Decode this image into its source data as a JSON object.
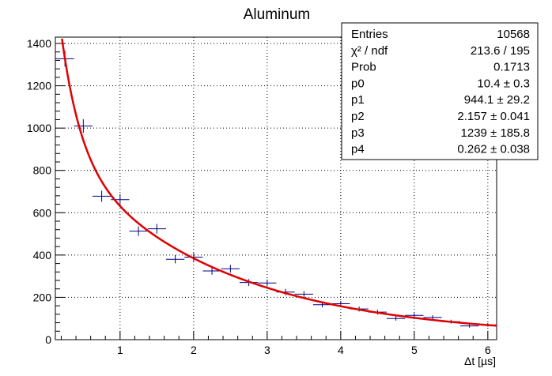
{
  "chart_data": {
    "type": "scatter",
    "title": "Aluminum",
    "xlabel": "Δt [µs]",
    "ylabel": "",
    "xlim": [
      0.12,
      6.12
    ],
    "ylim": [
      0,
      1430
    ],
    "grid": true,
    "x_ticks": [
      1,
      2,
      3,
      4,
      5,
      6
    ],
    "y_ticks": [
      0,
      200,
      400,
      600,
      800,
      1000,
      1200,
      1400
    ],
    "bin_half_width": 0.125,
    "series": [
      {
        "type": "histogram-points",
        "color": "#00007f",
        "x": [
          0.25,
          0.5,
          0.75,
          1.0,
          1.25,
          1.5,
          1.75,
          2.0,
          2.25,
          2.5,
          2.75,
          3.0,
          3.25,
          3.5,
          3.75,
          4.0,
          4.25,
          4.5,
          4.75,
          5.0,
          5.25,
          5.5,
          5.75,
          6.0
        ],
        "y": [
          1328,
          1010,
          678,
          662,
          513,
          524,
          380,
          390,
          325,
          335,
          270,
          268,
          225,
          215,
          165,
          170,
          145,
          130,
          100,
          115,
          105,
          85,
          65,
          70
        ]
      },
      {
        "type": "fit-curve",
        "color": "#e00000",
        "formula": "p0 + p1*exp(-t/p2) + p3*exp(-t/p4)"
      }
    ],
    "stats_box": {
      "placement": "top-right",
      "rows": [
        {
          "label": "Entries",
          "value": "10568"
        },
        {
          "label": "χ² / ndf",
          "value": "213.6 / 195"
        },
        {
          "label": "Prob",
          "value": "0.1713"
        },
        {
          "label": "p0",
          "value": "10.4 ± 0.3"
        },
        {
          "label": "p1",
          "value": "944.1 ± 29.2"
        },
        {
          "label": "p2",
          "value": "2.157 ± 0.041"
        },
        {
          "label": "p3",
          "value": "1239 ± 185.8"
        },
        {
          "label": "p4",
          "value": "0.262 ± 0.038"
        }
      ]
    },
    "fit_params": {
      "p0": 10.4,
      "p1": 944.1,
      "p2": 2.157,
      "p3": 1239,
      "p4": 0.262
    }
  }
}
